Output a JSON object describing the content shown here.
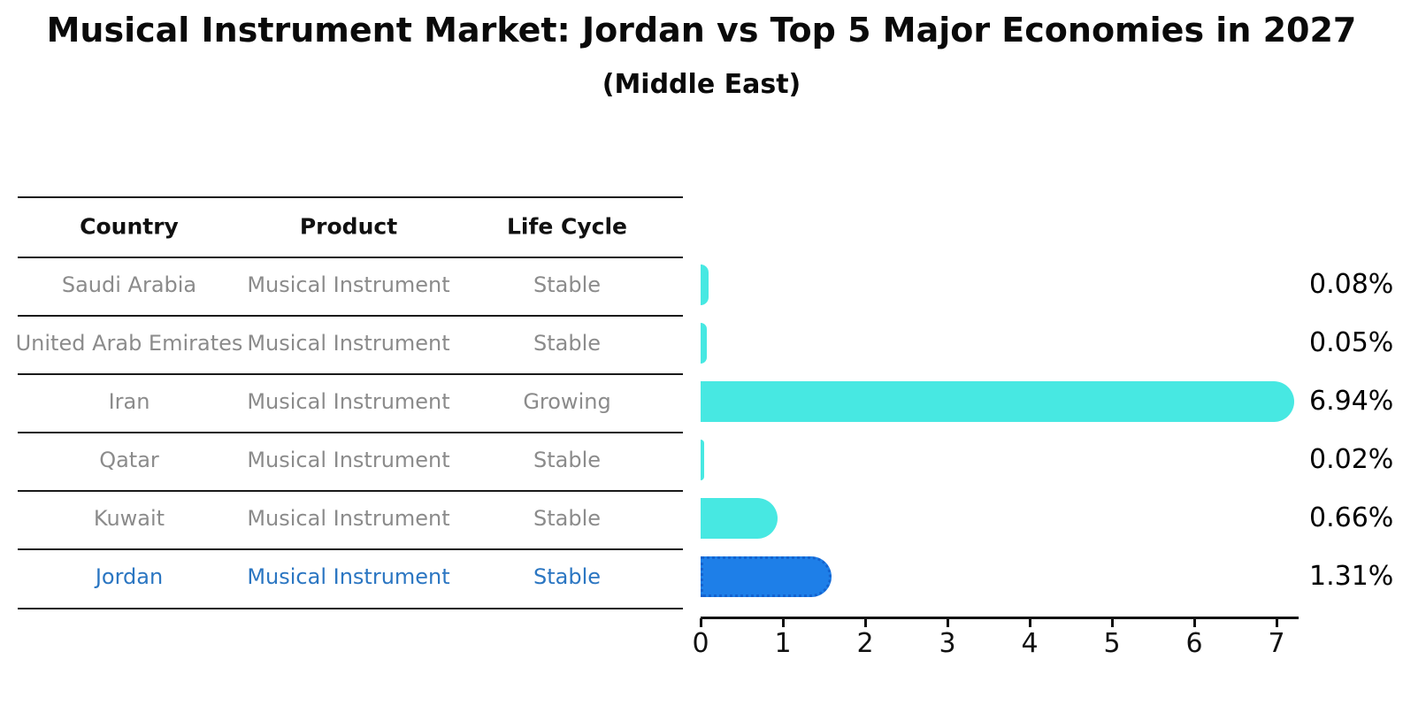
{
  "chart": {
    "title": "Musical Instrument Market: Jordan vs Top 5 Major Economies in 2027",
    "subtitle": "(Middle East)"
  },
  "table": {
    "headers": [
      "Country",
      "Product",
      "Life Cycle"
    ],
    "rows": [
      {
        "country": "Saudi Arabia",
        "product": "Musical Instrument",
        "life_cycle": "Stable",
        "highlighted": false
      },
      {
        "country": "United Arab Emirates",
        "product": "Musical Instrument",
        "life_cycle": "Stable",
        "highlighted": false
      },
      {
        "country": "Iran",
        "product": "Musical Instrument",
        "life_cycle": "Growing",
        "highlighted": false
      },
      {
        "country": "Qatar",
        "product": "Musical Instrument",
        "life_cycle": "Stable",
        "highlighted": false
      },
      {
        "country": "Kuwait",
        "product": "Musical Instrument",
        "life_cycle": "Stable",
        "highlighted": false
      },
      {
        "country": "Jordan",
        "product": "Musical Instrument",
        "life_cycle": "Stable",
        "highlighted": true
      }
    ]
  },
  "chart_data": {
    "type": "bar",
    "orientation": "horizontal",
    "title": "Musical Instrument Market: Jordan vs Top 5 Major Economies in 2027",
    "subtitle": "(Middle East)",
    "categories": [
      "Saudi Arabia",
      "United Arab Emirates",
      "Iran",
      "Qatar",
      "Kuwait",
      "Jordan"
    ],
    "values": [
      0.08,
      0.05,
      6.94,
      0.02,
      0.66,
      1.31
    ],
    "value_labels": [
      "0.08%",
      "0.05%",
      "6.94%",
      "0.02%",
      "0.66%",
      "1.31%"
    ],
    "xticks": [
      "0",
      "1",
      "2",
      "3",
      "4",
      "5",
      "6",
      "7"
    ],
    "xlim": [
      0,
      7.3
    ],
    "grid": false,
    "legend": "none",
    "bar_color": "#47e8e2",
    "highlight_index": 5,
    "highlight_bar_color": "#1e7fe8",
    "highlight_text_color": "#2b76c2",
    "table_text_color": "#8b8b8b",
    "axis_color": "#111111"
  }
}
